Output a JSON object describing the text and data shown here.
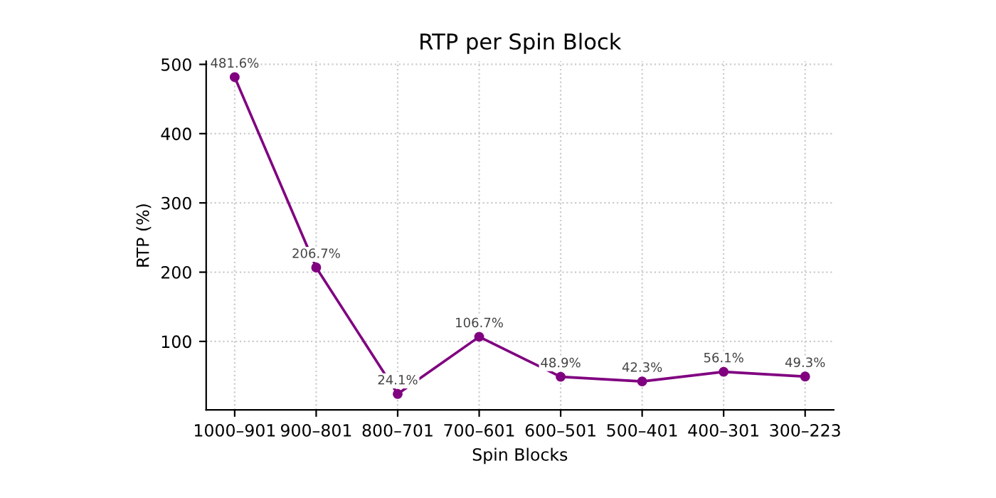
{
  "chart_data": {
    "type": "line",
    "title": "RTP per Spin Block",
    "xlabel": "Spin Blocks",
    "ylabel": "RTP (%)",
    "categories": [
      "1000–901",
      "900–801",
      "800–701",
      "700–601",
      "600–501",
      "500–401",
      "400–301",
      "300–223"
    ],
    "series": [
      {
        "color": "#800080",
        "values": [
          481.6,
          206.7,
          24.1,
          106.7,
          48.9,
          42.3,
          56.1,
          49.3
        ],
        "value_labels": [
          "481.6%",
          "206.7%",
          "24.1%",
          "106.7%",
          "48.9%",
          "42.3%",
          "56.1%",
          "49.3%"
        ]
      }
    ],
    "ylim": [
      1.2,
      504.5
    ],
    "yticks": [
      100,
      200,
      300,
      400,
      500
    ],
    "grid": true,
    "marker": "circle",
    "line_style": "solid",
    "legend": false
  }
}
